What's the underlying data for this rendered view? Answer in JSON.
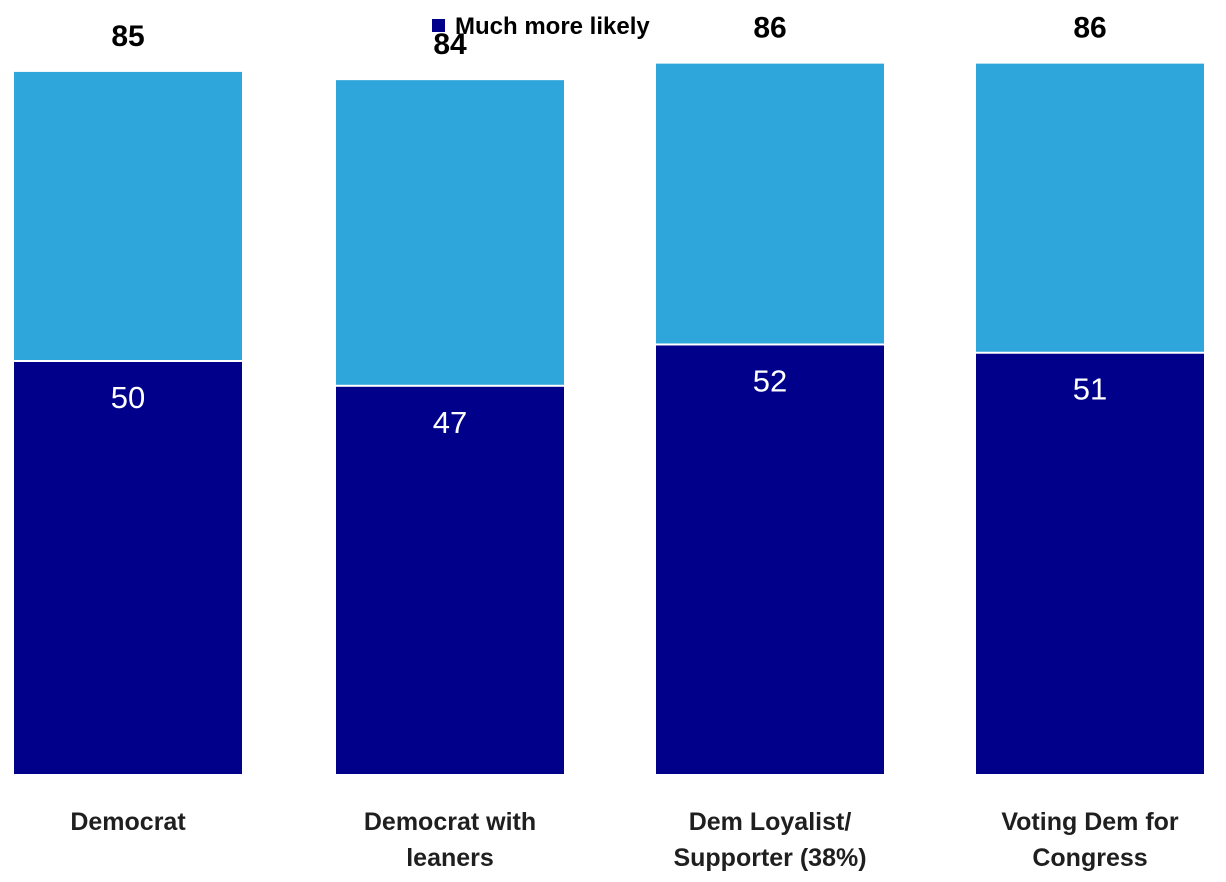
{
  "chart_data": {
    "type": "bar",
    "stacked": true,
    "categories": [
      [
        "Democrat"
      ],
      [
        "Democrat with",
        "leaners"
      ],
      [
        "Dem Loyalist/",
        "Supporter (38%)"
      ],
      [
        "Voting Dem for",
        "Congress"
      ]
    ],
    "series": [
      {
        "name": "Much more likely",
        "values": [
          50,
          47,
          52,
          51
        ],
        "color": "#00008b"
      },
      {
        "values": [
          35,
          37,
          34,
          35
        ],
        "color": "#2ea5db"
      }
    ],
    "totals": [
      85,
      84,
      86,
      86
    ],
    "title": "",
    "xlabel": "",
    "ylabel": "",
    "ylim": [
      0,
      100
    ],
    "grid": false,
    "legend": {
      "position": "top-center",
      "entries": [
        "Much more likely"
      ]
    }
  }
}
